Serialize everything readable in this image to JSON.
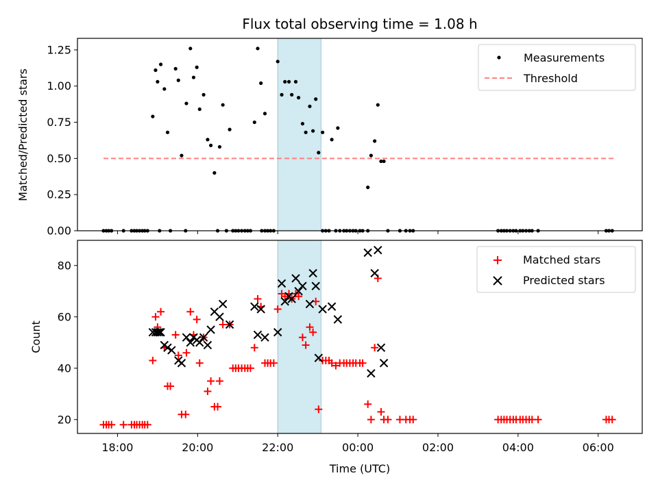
{
  "title": "Flux total observing time = 1.08 h",
  "colors": {
    "measurement": "#000000",
    "threshold": "#ff7f7f",
    "matched": "#ff0000",
    "predicted": "#000000",
    "shade": "#add8e6"
  },
  "chart_data": [
    {
      "type": "scatter",
      "ylabel": "Matched/Predicted stars",
      "xlim": [
        17.0,
        31.1
      ],
      "ylim": [
        0,
        1.33
      ],
      "xtick_values": [
        18,
        20,
        22,
        24,
        26,
        28,
        30
      ],
      "yticks": [
        0.0,
        0.25,
        0.5,
        0.75,
        1.0,
        1.25
      ],
      "ytick_labels": [
        "0.00",
        "0.25",
        "0.50",
        "0.75",
        "1.00",
        "1.25"
      ],
      "shaded_span": [
        22.0,
        23.08
      ],
      "legend": {
        "placement": "upper right",
        "entries": [
          "Measurements",
          "Threshold"
        ]
      },
      "threshold": {
        "name": "Threshold",
        "y": 0.5,
        "x_range": [
          17.65,
          30.45
        ]
      },
      "series": [
        {
          "name": "Measurements",
          "points": [
            [
              17.65,
              0
            ],
            [
              17.72,
              0
            ],
            [
              17.78,
              0
            ],
            [
              17.85,
              0
            ],
            [
              18.15,
              0
            ],
            [
              18.35,
              0
            ],
            [
              18.42,
              0
            ],
            [
              18.48,
              0
            ],
            [
              18.55,
              0
            ],
            [
              18.62,
              0
            ],
            [
              18.68,
              0
            ],
            [
              18.75,
              0
            ],
            [
              18.88,
              0.79
            ],
            [
              18.95,
              1.11
            ],
            [
              19.0,
              1.03
            ],
            [
              19.08,
              1.15
            ],
            [
              19.17,
              0.98
            ],
            [
              19.25,
              0.68
            ],
            [
              19.45,
              1.12
            ],
            [
              19.52,
              1.04
            ],
            [
              19.6,
              0.52
            ],
            [
              19.72,
              0.88
            ],
            [
              19.82,
              1.26
            ],
            [
              19.9,
              1.06
            ],
            [
              19.98,
              1.13
            ],
            [
              20.05,
              0.84
            ],
            [
              20.15,
              0.94
            ],
            [
              20.25,
              0.63
            ],
            [
              20.33,
              0.59
            ],
            [
              20.42,
              0.4
            ],
            [
              20.55,
              0.58
            ],
            [
              20.63,
              0.87
            ],
            [
              20.8,
              0.7
            ],
            [
              19.05,
              0
            ],
            [
              19.32,
              0
            ],
            [
              19.7,
              0
            ],
            [
              20.5,
              0
            ],
            [
              20.72,
              0
            ],
            [
              20.88,
              0
            ],
            [
              20.95,
              0
            ],
            [
              21.02,
              0
            ],
            [
              21.1,
              0
            ],
            [
              21.18,
              0
            ],
            [
              21.25,
              0
            ],
            [
              21.32,
              0
            ],
            [
              21.6,
              0
            ],
            [
              21.68,
              0
            ],
            [
              21.75,
              0
            ],
            [
              21.82,
              0
            ],
            [
              21.9,
              0
            ],
            [
              21.42,
              0.75
            ],
            [
              21.5,
              1.26
            ],
            [
              21.58,
              1.02
            ],
            [
              21.68,
              0.81
            ],
            [
              22.0,
              1.17
            ],
            [
              22.1,
              0.94
            ],
            [
              22.18,
              1.03
            ],
            [
              22.28,
              1.03
            ],
            [
              22.35,
              0.94
            ],
            [
              22.45,
              1.03
            ],
            [
              22.52,
              0.92
            ],
            [
              22.62,
              0.74
            ],
            [
              22.7,
              0.68
            ],
            [
              22.8,
              0.86
            ],
            [
              22.88,
              0.69
            ],
            [
              22.95,
              0.91
            ],
            [
              23.02,
              0.54
            ],
            [
              23.12,
              0.68
            ],
            [
              23.35,
              0.63
            ],
            [
              23.5,
              0.71
            ],
            [
              23.12,
              0
            ],
            [
              23.2,
              0
            ],
            [
              23.28,
              0
            ],
            [
              23.45,
              0
            ],
            [
              23.55,
              0
            ],
            [
              23.65,
              0
            ],
            [
              23.72,
              0
            ],
            [
              23.8,
              0
            ],
            [
              23.88,
              0
            ],
            [
              23.95,
              0
            ],
            [
              24.05,
              0
            ],
            [
              24.12,
              0
            ],
            [
              24.25,
              0.3
            ],
            [
              24.33,
              0.52
            ],
            [
              24.42,
              0.62
            ],
            [
              24.5,
              0.87
            ],
            [
              24.58,
              0.48
            ],
            [
              24.65,
              0.48
            ],
            [
              24.25,
              0
            ],
            [
              24.75,
              0
            ],
            [
              25.05,
              0
            ],
            [
              25.2,
              0
            ],
            [
              25.3,
              0
            ],
            [
              25.38,
              0
            ],
            [
              27.5,
              0
            ],
            [
              27.58,
              0
            ],
            [
              27.65,
              0
            ],
            [
              27.72,
              0
            ],
            [
              27.8,
              0
            ],
            [
              27.88,
              0
            ],
            [
              27.95,
              0
            ],
            [
              28.05,
              0
            ],
            [
              28.12,
              0
            ],
            [
              28.2,
              0
            ],
            [
              28.28,
              0
            ],
            [
              28.35,
              0
            ],
            [
              28.5,
              0
            ],
            [
              30.2,
              0
            ],
            [
              30.27,
              0
            ],
            [
              30.35,
              0
            ]
          ]
        }
      ]
    },
    {
      "type": "scatter",
      "xlabel": "Time (UTC)",
      "ylabel": "Count",
      "xlim": [
        17.0,
        31.1
      ],
      "ylim": [
        14.6,
        89.8
      ],
      "xticks": [
        18,
        20,
        22,
        24,
        26,
        28,
        30
      ],
      "xtick_labels": [
        "18:00",
        "20:00",
        "22:00",
        "00:00",
        "02:00",
        "04:00",
        "06:00"
      ],
      "yticks": [
        20,
        40,
        60,
        80
      ],
      "ytick_labels": [
        "20",
        "40",
        "60",
        "80"
      ],
      "shaded_span": [
        22.0,
        23.08
      ],
      "legend": {
        "placement": "upper right",
        "entries": [
          "Matched stars",
          "Predicted stars"
        ]
      },
      "series": [
        {
          "name": "Matched stars",
          "marker": "plus",
          "points": [
            [
              17.65,
              18
            ],
            [
              17.72,
              18
            ],
            [
              17.78,
              18
            ],
            [
              17.85,
              18
            ],
            [
              18.15,
              18
            ],
            [
              18.35,
              18
            ],
            [
              18.42,
              18
            ],
            [
              18.48,
              18
            ],
            [
              18.55,
              18
            ],
            [
              18.62,
              18
            ],
            [
              18.68,
              18
            ],
            [
              18.75,
              18
            ],
            [
              18.88,
              43
            ],
            [
              18.95,
              60
            ],
            [
              19.0,
              56
            ],
            [
              19.08,
              62
            ],
            [
              19.17,
              48
            ],
            [
              19.25,
              33
            ],
            [
              19.32,
              33
            ],
            [
              19.45,
              53
            ],
            [
              19.52,
              45
            ],
            [
              19.6,
              22
            ],
            [
              19.7,
              22
            ],
            [
              19.72,
              46
            ],
            [
              19.82,
              62
            ],
            [
              19.9,
              53
            ],
            [
              19.98,
              59
            ],
            [
              20.05,
              42
            ],
            [
              20.15,
              52
            ],
            [
              20.25,
              31
            ],
            [
              20.33,
              35
            ],
            [
              20.42,
              25
            ],
            [
              20.5,
              25
            ],
            [
              20.55,
              35
            ],
            [
              20.63,
              57
            ],
            [
              20.8,
              57
            ],
            [
              20.88,
              40
            ],
            [
              20.95,
              40
            ],
            [
              21.02,
              40
            ],
            [
              21.1,
              40
            ],
            [
              21.18,
              40
            ],
            [
              21.25,
              40
            ],
            [
              21.32,
              40
            ],
            [
              21.42,
              48
            ],
            [
              21.5,
              67
            ],
            [
              21.58,
              64
            ],
            [
              21.68,
              42
            ],
            [
              21.75,
              42
            ],
            [
              21.82,
              42
            ],
            [
              21.9,
              42
            ],
            [
              22.0,
              63
            ],
            [
              22.1,
              69
            ],
            [
              22.18,
              68
            ],
            [
              22.28,
              69
            ],
            [
              22.35,
              67
            ],
            [
              22.45,
              69
            ],
            [
              22.52,
              68
            ],
            [
              22.62,
              52
            ],
            [
              22.7,
              49
            ],
            [
              22.8,
              56
            ],
            [
              22.88,
              54
            ],
            [
              22.95,
              66
            ],
            [
              23.02,
              24
            ],
            [
              23.12,
              43
            ],
            [
              23.2,
              43
            ],
            [
              23.28,
              43
            ],
            [
              23.35,
              42
            ],
            [
              23.45,
              41
            ],
            [
              23.55,
              42
            ],
            [
              23.65,
              42
            ],
            [
              23.72,
              42
            ],
            [
              23.8,
              42
            ],
            [
              23.88,
              42
            ],
            [
              23.95,
              42
            ],
            [
              24.05,
              42
            ],
            [
              24.12,
              42
            ],
            [
              24.25,
              26
            ],
            [
              24.33,
              20
            ],
            [
              24.42,
              48
            ],
            [
              24.5,
              75
            ],
            [
              24.58,
              23
            ],
            [
              24.65,
              20
            ],
            [
              24.75,
              20
            ],
            [
              25.05,
              20
            ],
            [
              25.2,
              20
            ],
            [
              25.3,
              20
            ],
            [
              25.38,
              20
            ],
            [
              27.5,
              20
            ],
            [
              27.58,
              20
            ],
            [
              27.65,
              20
            ],
            [
              27.72,
              20
            ],
            [
              27.8,
              20
            ],
            [
              27.88,
              20
            ],
            [
              27.95,
              20
            ],
            [
              28.05,
              20
            ],
            [
              28.12,
              20
            ],
            [
              28.2,
              20
            ],
            [
              28.28,
              20
            ],
            [
              28.35,
              20
            ],
            [
              28.5,
              20
            ],
            [
              30.2,
              20
            ],
            [
              30.27,
              20
            ],
            [
              30.35,
              20
            ]
          ]
        },
        {
          "name": "Predicted stars",
          "marker": "x",
          "points": [
            [
              18.88,
              54
            ],
            [
              18.95,
              54
            ],
            [
              19.0,
              54
            ],
            [
              19.05,
              54
            ],
            [
              19.08,
              54
            ],
            [
              19.17,
              49
            ],
            [
              19.25,
              48
            ],
            [
              19.35,
              47
            ],
            [
              19.52,
              43
            ],
            [
              19.6,
              42
            ],
            [
              19.72,
              52
            ],
            [
              19.82,
              50
            ],
            [
              19.9,
              52
            ],
            [
              19.98,
              51
            ],
            [
              20.05,
              50
            ],
            [
              20.15,
              52
            ],
            [
              20.25,
              49
            ],
            [
              20.33,
              55
            ],
            [
              20.42,
              62
            ],
            [
              20.55,
              60
            ],
            [
              20.63,
              65
            ],
            [
              20.8,
              57
            ],
            [
              21.42,
              64
            ],
            [
              21.5,
              53
            ],
            [
              21.58,
              63
            ],
            [
              21.68,
              52
            ],
            [
              22.0,
              54
            ],
            [
              22.1,
              73
            ],
            [
              22.18,
              66
            ],
            [
              22.28,
              68
            ],
            [
              22.35,
              67
            ],
            [
              22.45,
              75
            ],
            [
              22.52,
              70
            ],
            [
              22.62,
              72
            ],
            [
              22.8,
              65
            ],
            [
              22.88,
              77
            ],
            [
              22.95,
              72
            ],
            [
              23.02,
              44
            ],
            [
              23.12,
              63
            ],
            [
              23.35,
              64
            ],
            [
              23.5,
              59
            ],
            [
              24.25,
              85
            ],
            [
              24.33,
              38
            ],
            [
              24.42,
              77
            ],
            [
              24.5,
              86
            ],
            [
              24.58,
              48
            ],
            [
              24.65,
              42
            ]
          ]
        }
      ]
    }
  ]
}
